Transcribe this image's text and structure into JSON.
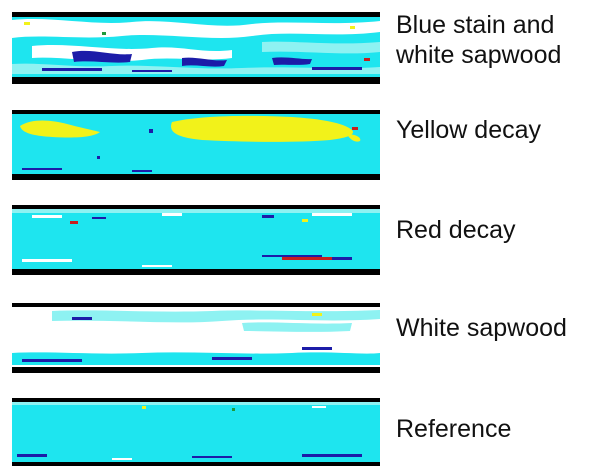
{
  "colors": {
    "border": "#000000",
    "base": "#1ee5ef",
    "light": "#8ef2f2",
    "white": "#ffffff",
    "yellow": "#f2f21a",
    "blue": "#1c1ca8",
    "red": "#c81e1e",
    "green": "#1e9a3a"
  },
  "panels": [
    {
      "id": "blue-stain",
      "label_line1": "Blue stain and",
      "label_line2": "white sapwood"
    },
    {
      "id": "yellow-decay",
      "label": "Yellow decay"
    },
    {
      "id": "red-decay",
      "label": "Red decay"
    },
    {
      "id": "white-sapwood",
      "label": "White sapwood"
    },
    {
      "id": "reference",
      "label": "Reference"
    }
  ]
}
